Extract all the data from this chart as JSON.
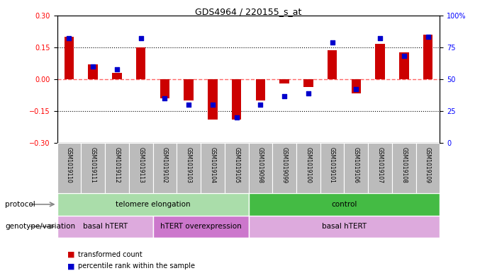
{
  "title": "GDS4964 / 220155_s_at",
  "samples": [
    "GSM1019110",
    "GSM1019111",
    "GSM1019112",
    "GSM1019113",
    "GSM1019102",
    "GSM1019103",
    "GSM1019104",
    "GSM1019105",
    "GSM1019098",
    "GSM1019099",
    "GSM1019100",
    "GSM1019101",
    "GSM1019106",
    "GSM1019107",
    "GSM1019108",
    "GSM1019109"
  ],
  "transformed_counts": [
    0.2,
    0.07,
    0.03,
    0.148,
    -0.09,
    -0.1,
    -0.19,
    -0.19,
    -0.1,
    -0.02,
    -0.035,
    0.135,
    -0.065,
    0.165,
    0.125,
    0.21
  ],
  "percentile_ranks": [
    82,
    60,
    58,
    82,
    35,
    30,
    30,
    20,
    30,
    37,
    39,
    79,
    42,
    82,
    68,
    83
  ],
  "ylim_left": [
    -0.3,
    0.3
  ],
  "ylim_right": [
    0,
    100
  ],
  "yticks_left": [
    -0.3,
    -0.15,
    0.0,
    0.15,
    0.3
  ],
  "yticks_right": [
    0,
    25,
    50,
    75,
    100
  ],
  "bar_color": "#cc0000",
  "dot_color": "#0000cc",
  "zero_line_color": "#ff6666",
  "dotted_line_color": "#000000",
  "protocol_groups": [
    {
      "label": "telomere elongation",
      "start": 0,
      "end": 8,
      "color": "#aaddaa"
    },
    {
      "label": "control",
      "start": 8,
      "end": 16,
      "color": "#44bb44"
    }
  ],
  "genotype_groups": [
    {
      "label": "basal hTERT",
      "start": 0,
      "end": 4,
      "color": "#ddaadd"
    },
    {
      "label": "hTERT overexpression",
      "start": 4,
      "end": 8,
      "color": "#cc77cc"
    },
    {
      "label": "basal hTERT",
      "start": 8,
      "end": 16,
      "color": "#ddaadd"
    }
  ],
  "xlabel_protocol": "protocol",
  "xlabel_genotype": "genotype/variation",
  "legend_items": [
    "transformed count",
    "percentile rank within the sample"
  ],
  "background_color": "#ffffff",
  "tick_label_bg": "#bbbbbb"
}
